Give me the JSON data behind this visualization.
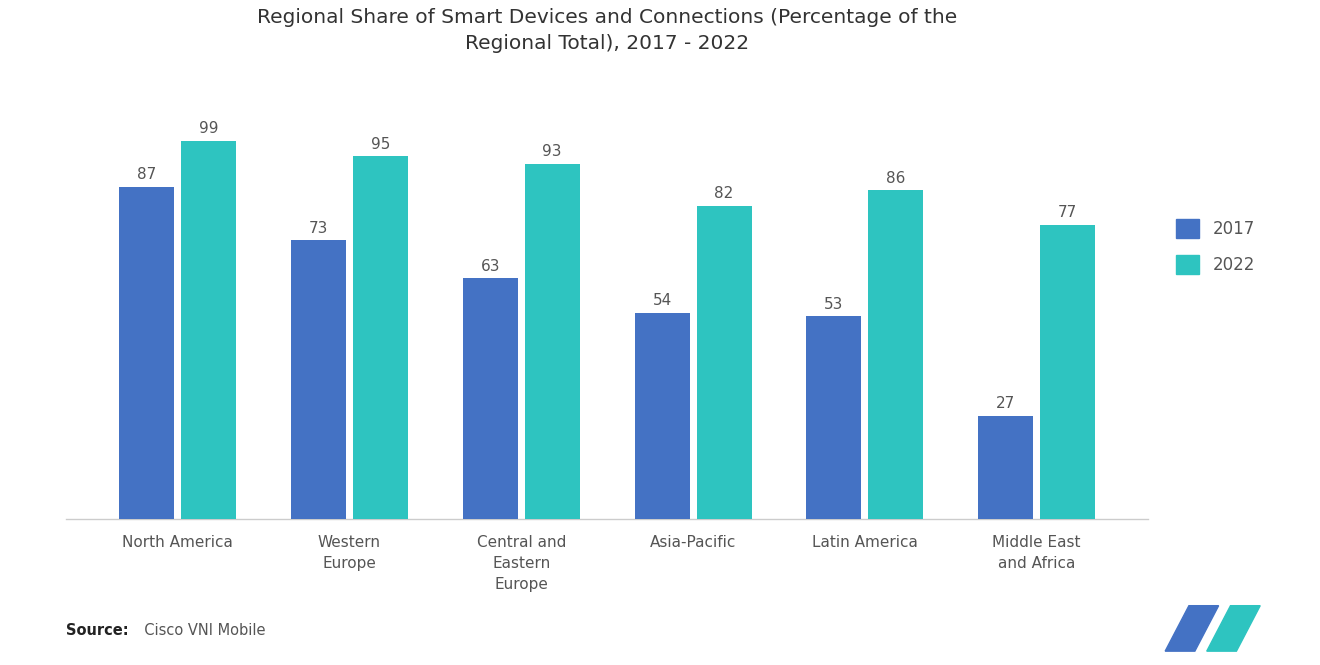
{
  "title": "Regional Share of Smart Devices and Connections (Percentage of the\nRegional Total), 2017 - 2022",
  "categories": [
    "North America",
    "Western\nEurope",
    "Central and\nEastern\nEurope",
    "Asia-Pacific",
    "Latin America",
    "Middle East\nand Africa"
  ],
  "values_2017": [
    87,
    73,
    63,
    54,
    53,
    27
  ],
  "values_2022": [
    99,
    95,
    93,
    82,
    86,
    77
  ],
  "color_2017": "#4472C4",
  "color_2022": "#2EC4C0",
  "legend_labels": [
    "2017",
    "2022"
  ],
  "source_bold": "Source:",
  "source_text": "  Cisco VNI Mobile",
  "bg_color": "#FFFFFF",
  "title_fontsize": 14.5,
  "bar_width": 0.32,
  "ylim": [
    0,
    115
  ],
  "label_fontsize": 11,
  "tick_fontsize": 11,
  "axis_color": "#CCCCCC",
  "text_color": "#555555"
}
